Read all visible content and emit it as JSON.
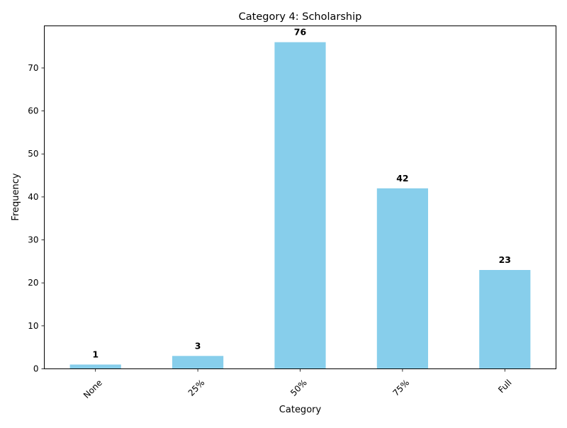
{
  "chart_data": {
    "type": "bar",
    "title": "Category 4: Scholarship",
    "xlabel": "Category",
    "ylabel": "Frequency",
    "categories": [
      "None",
      "25%",
      "50%",
      "75%",
      "Full"
    ],
    "values": [
      1,
      3,
      76,
      42,
      23
    ],
    "ylim": [
      0,
      79.8
    ],
    "yticks": [
      0,
      10,
      20,
      30,
      40,
      50,
      60,
      70
    ],
    "bar_color": "#87CEEB",
    "data_labels": true,
    "grid": false,
    "legend": "none",
    "xtick_rotation": 45
  }
}
